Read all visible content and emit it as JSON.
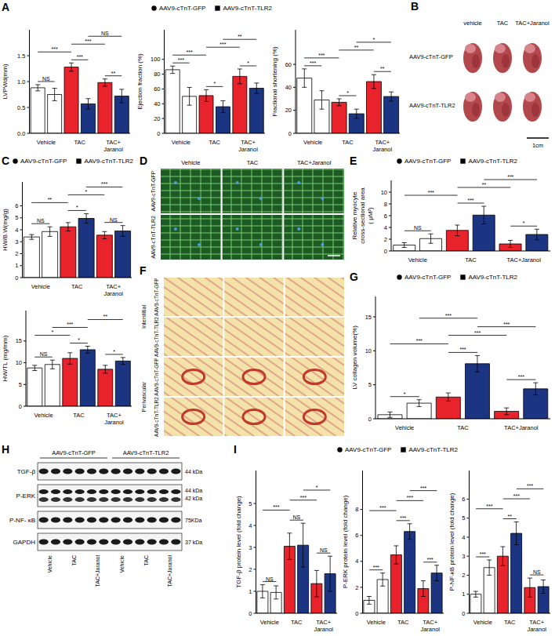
{
  "chart_data": [
    {
      "panel": "A",
      "type": "bar",
      "y_label": "LVPWd(mm)",
      "categories": [
        "Vehicle",
        "TAC",
        "TAC+Jaranol"
      ],
      "legend": "top",
      "series": [
        {
          "name": "AAV9-cTnT-GFP",
          "marker": "circle",
          "colors": [
            "#ffffff",
            "#e8232b",
            "#e8232b"
          ],
          "values": [
            0.88,
            1.28,
            0.98
          ],
          "errors": [
            0.06,
            0.08,
            0.07
          ]
        },
        {
          "name": "AAV9-cTnT-TLR2",
          "marker": "square",
          "colors": [
            "#ffffff",
            "#1c3582",
            "#1c3582"
          ],
          "values": [
            0.75,
            0.57,
            0.72
          ],
          "errors": [
            0.12,
            0.1,
            0.13
          ]
        }
      ],
      "ylim": [
        0,
        2
      ],
      "yticks": [
        {
          "value": 0,
          "label": "0.0"
        },
        0.5,
        {
          "value": 1,
          "label": "1.0"
        },
        1.5
      ],
      "comparisons": [
        {
          "bars": [
            0,
            1
          ],
          "label": "NS"
        },
        {
          "bars": [
            2,
            3
          ],
          "label": "***"
        },
        {
          "bars": [
            4,
            5
          ],
          "label": "**"
        },
        {
          "bars": [
            0,
            2
          ],
          "label": "***"
        },
        {
          "bars": [
            2,
            4
          ],
          "label": "***"
        },
        {
          "bars": [
            3,
            5
          ],
          "label": "NS"
        }
      ]
    },
    {
      "type": "bar",
      "y_label": "Ejection fraction (%)",
      "categories": [
        "Vehicle",
        "TAC",
        "TAC+Jaranol"
      ],
      "series": [
        {
          "name": "AAV9-cTnT-GFP",
          "marker": "circle",
          "colors": [
            "#ffffff",
            "#e8232b",
            "#e8232b"
          ],
          "values": [
            86,
            51,
            77
          ],
          "errors": [
            5,
            8,
            10
          ]
        },
        {
          "name": "AAV9-cTnT-TLR2",
          "marker": "square",
          "colors": [
            "#ffffff",
            "#1c3582",
            "#1c3582"
          ],
          "values": [
            50,
            36,
            61
          ],
          "errors": [
            12,
            8,
            7
          ]
        }
      ],
      "ylim": [
        0,
        140
      ],
      "yticks": [
        0,
        20,
        40,
        60,
        80,
        100
      ],
      "comparisons": [
        {
          "bars": [
            0,
            1
          ],
          "label": "***"
        },
        {
          "bars": [
            2,
            3
          ],
          "label": "*"
        },
        {
          "bars": [
            4,
            5
          ],
          "label": "*"
        },
        {
          "bars": [
            0,
            2
          ],
          "label": "***"
        },
        {
          "bars": [
            2,
            4
          ],
          "label": "***"
        },
        {
          "bars": [
            3,
            5
          ],
          "label": "**"
        }
      ]
    },
    {
      "type": "bar",
      "y_label": "Fractional shortening (%)",
      "categories": [
        "Vehicle",
        "TAC",
        "TAC+Jaranol"
      ],
      "series": [
        {
          "name": "AAV9-cTnT-GFP",
          "marker": "circle",
          "colors": [
            "#ffffff",
            "#e8232b",
            "#e8232b"
          ],
          "values": [
            48,
            27,
            45
          ],
          "errors": [
            8,
            3,
            6
          ]
        },
        {
          "name": "AAV9-cTnT-TLR2",
          "marker": "square",
          "colors": [
            "#ffffff",
            "#1c3582",
            "#1c3582"
          ],
          "values": [
            29,
            17,
            32
          ],
          "errors": [
            8,
            4,
            4
          ]
        }
      ],
      "ylim": [
        0,
        90
      ],
      "yticks": [
        0,
        20,
        40,
        60
      ],
      "comparisons": [
        {
          "bars": [
            0,
            1
          ],
          "label": "***"
        },
        {
          "bars": [
            2,
            3
          ],
          "label": "*"
        },
        {
          "bars": [
            4,
            5
          ],
          "label": "**"
        },
        {
          "bars": [
            0,
            2
          ],
          "label": "***"
        },
        {
          "bars": [
            2,
            4
          ],
          "label": "**"
        },
        {
          "bars": [
            3,
            5
          ],
          "label": "*"
        }
      ]
    },
    {
      "panel": "C",
      "type": "bar",
      "y_label": "HW/B.W(mg/g)",
      "categories": [
        "Vehicle",
        "TAC",
        "TAC+Jaranol"
      ],
      "legend": "top",
      "series": [
        {
          "name": "AAV9-cTnT-GFP",
          "marker": "circle",
          "colors": [
            "#ffffff",
            "#e8232b",
            "#e8232b"
          ],
          "values": [
            3.4,
            4.25,
            3.55
          ],
          "errors": [
            0.2,
            0.35,
            0.3
          ]
        },
        {
          "name": "AAV9-cTnT-TLR2",
          "marker": "square",
          "colors": [
            "#ffffff",
            "#1c3582",
            "#1c3582"
          ],
          "values": [
            3.85,
            4.95,
            3.9
          ],
          "errors": [
            0.4,
            0.4,
            0.45
          ]
        }
      ],
      "ylim": [
        0,
        8
      ],
      "yticks": [
        0,
        1,
        2,
        3,
        4,
        5,
        6
      ],
      "comparisons": [
        {
          "bars": [
            0,
            1
          ],
          "label": "NS"
        },
        {
          "bars": [
            2,
            3
          ],
          "label": "*"
        },
        {
          "bars": [
            4,
            5
          ],
          "label": "NS"
        },
        {
          "bars": [
            0,
            2
          ],
          "label": "**"
        },
        {
          "bars": [
            2,
            4
          ],
          "label": "*"
        },
        {
          "bars": [
            3,
            5
          ],
          "label": "***"
        }
      ]
    },
    {
      "type": "bar",
      "y_label": "HW/TL (mg/mm)",
      "categories": [
        "Vehicle",
        "TAC",
        "TAC+Jaranol"
      ],
      "series": [
        {
          "name": "AAV9-cTnT-GFP",
          "marker": "circle",
          "colors": [
            "#ffffff",
            "#e8232b",
            "#e8232b"
          ],
          "values": [
            8.8,
            11,
            8.5
          ],
          "errors": [
            0.6,
            1.3,
            0.9
          ]
        },
        {
          "name": "AAV9-cTnT-TLR2",
          "marker": "square",
          "colors": [
            "#ffffff",
            "#1c3582",
            "#1c3582"
          ],
          "values": [
            9.6,
            13,
            10.4
          ],
          "errors": [
            1,
            0.8,
            0.8
          ]
        }
      ],
      "ylim": [
        0,
        22
      ],
      "yticks": [
        0,
        5,
        10,
        15
      ],
      "comparisons": [
        {
          "bars": [
            0,
            1
          ],
          "label": "NS"
        },
        {
          "bars": [
            2,
            3
          ],
          "label": "*"
        },
        {
          "bars": [
            4,
            5
          ],
          "label": "*"
        },
        {
          "bars": [
            0,
            2
          ],
          "label": "*"
        },
        {
          "bars": [
            1,
            3
          ],
          "label": "***"
        },
        {
          "bars": [
            3,
            5
          ],
          "label": "**"
        }
      ]
    },
    {
      "panel": "E",
      "type": "bar",
      "y_label": "Relative myocyte cross-sectional area ( μM²)",
      "categories": [
        "Vehicle",
        "TAC",
        "TAC+Jaranol"
      ],
      "legend": "top",
      "series": [
        {
          "name": "AAV9-cTnT-GFP",
          "marker": "circle",
          "colors": [
            "#ffffff",
            "#e8232b",
            "#e8232b"
          ],
          "values": [
            1.0,
            3.5,
            1.2
          ],
          "errors": [
            0.4,
            0.9,
            0.6
          ]
        },
        {
          "name": "AAV9-cTnT-TLR2",
          "marker": "square",
          "colors": [
            "#ffffff",
            "#1c3582",
            "#1c3582"
          ],
          "values": [
            2.1,
            6.1,
            2.8
          ],
          "errors": [
            0.8,
            1.5,
            0.9
          ]
        }
      ],
      "ylim": [
        0,
        12
      ],
      "yticks": [
        0,
        2,
        4,
        6,
        8,
        10
      ],
      "comparisons": [
        {
          "bars": [
            0,
            1
          ],
          "label": "NS"
        },
        {
          "bars": [
            2,
            3
          ],
          "label": "***"
        },
        {
          "bars": [
            4,
            5
          ],
          "label": "*"
        },
        {
          "bars": [
            0,
            2
          ],
          "label": "***"
        },
        {
          "bars": [
            2,
            4
          ],
          "label": "**"
        },
        {
          "bars": [
            3,
            5
          ],
          "label": "***"
        }
      ]
    },
    {
      "panel": "G",
      "type": "bar",
      "y_label": "LV collagen volume(%)",
      "categories": [
        "Vehicle",
        "TAC",
        "TAC+Jaranol"
      ],
      "legend": "top",
      "series": [
        {
          "name": "AAV9-cTnT-GFP",
          "marker": "circle",
          "colors": [
            "#ffffff",
            "#e8232b",
            "#e8232b"
          ],
          "values": [
            0.6,
            3.2,
            1.1
          ],
          "errors": [
            0.4,
            0.6,
            0.5
          ]
        },
        {
          "name": "AAV9-cTnT-TLR2",
          "marker": "square",
          "colors": [
            "#ffffff",
            "#1c3582",
            "#1c3582"
          ],
          "values": [
            2.3,
            8.1,
            4.4
          ],
          "errors": [
            0.5,
            1.2,
            0.9
          ]
        }
      ],
      "ylim": [
        0,
        18
      ],
      "yticks": [
        0,
        5,
        10,
        15
      ],
      "comparisons": [
        {
          "bars": [
            0,
            1
          ],
          "label": "*"
        },
        {
          "bars": [
            2,
            3
          ],
          "label": "***"
        },
        {
          "bars": [
            4,
            5
          ],
          "label": "***"
        },
        {
          "bars": [
            0,
            2
          ],
          "label": "***"
        },
        {
          "bars": [
            2,
            4
          ],
          "label": "***"
        },
        {
          "bars": [
            3,
            5
          ],
          "label": "***"
        },
        {
          "bars": [
            1,
            3
          ],
          "label": "***"
        }
      ]
    },
    {
      "panel": "I",
      "type": "bar",
      "y_label": "TGF-β protein level (fold change)",
      "categories": [
        "Vehicle",
        "TAC",
        "TAC+Jaranol"
      ],
      "legend": "top",
      "series": [
        {
          "name": "AAV9-cTnT-GFP",
          "marker": "circle",
          "colors": [
            "#ffffff",
            "#e8232b",
            "#e8232b"
          ],
          "values": [
            1.0,
            3.05,
            1.35
          ],
          "errors": [
            0.3,
            0.6,
            0.6
          ]
        },
        {
          "name": "AAV9-cTnT-TLR2",
          "marker": "square",
          "colors": [
            "#ffffff",
            "#1c3582",
            "#1c3582"
          ],
          "values": [
            0.95,
            3.1,
            1.8
          ],
          "errors": [
            0.3,
            1.0,
            0.8
          ]
        }
      ],
      "ylim": [
        0,
        6.5
      ],
      "yticks": [
        0,
        1,
        2,
        3,
        4,
        5
      ],
      "comparisons": [
        {
          "bars": [
            0,
            1
          ],
          "label": "NS"
        },
        {
          "bars": [
            2,
            3
          ],
          "label": "NS"
        },
        {
          "bars": [
            4,
            5
          ],
          "label": "NS"
        },
        {
          "bars": [
            0,
            2
          ],
          "label": "***"
        },
        {
          "bars": [
            2,
            4
          ],
          "label": "***"
        },
        {
          "bars": [
            3,
            5
          ],
          "label": "*"
        }
      ]
    },
    {
      "type": "bar",
      "y_label": "P-ERK protein level (fold change)",
      "categories": [
        "Vehicle",
        "TAC",
        "TAC+Jaranol"
      ],
      "series": [
        {
          "name": "AAV9-cTnT-GFP",
          "marker": "circle",
          "colors": [
            "#ffffff",
            "#e8232b",
            "#e8232b"
          ],
          "values": [
            1.0,
            4.5,
            1.9
          ],
          "errors": [
            0.3,
            0.7,
            0.6
          ]
        },
        {
          "name": "AAV9-cTnT-TLR2",
          "marker": "square",
          "colors": [
            "#ffffff",
            "#1c3582",
            "#1c3582"
          ],
          "values": [
            2.6,
            6.3,
            3.1
          ],
          "errors": [
            0.5,
            0.6,
            0.6
          ]
        }
      ],
      "ylim": [
        0,
        11
      ],
      "yticks": [
        0,
        2,
        4,
        6,
        8
      ],
      "comparisons": [
        {
          "bars": [
            0,
            1
          ],
          "label": "***"
        },
        {
          "bars": [
            2,
            3
          ],
          "label": "***"
        },
        {
          "bars": [
            4,
            5
          ],
          "label": "***"
        },
        {
          "bars": [
            0,
            2
          ],
          "label": "***"
        },
        {
          "bars": [
            2,
            4
          ],
          "label": "***"
        },
        {
          "bars": [
            3,
            5
          ],
          "label": "***"
        }
      ]
    },
    {
      "type": "bar",
      "y_label": "P-NF-κB protein level (fold change)",
      "categories": [
        "Vehicle",
        "TAC",
        "TAC+Jaranol"
      ],
      "series": [
        {
          "name": "AAV9-cTnT-GFP",
          "marker": "circle",
          "colors": [
            "#ffffff",
            "#e8232b",
            "#e8232b"
          ],
          "values": [
            1.0,
            3.0,
            1.35
          ],
          "errors": [
            0.15,
            0.5,
            0.5
          ]
        },
        {
          "name": "AAV9-cTnT-TLR2",
          "marker": "square",
          "colors": [
            "#ffffff",
            "#1c3582",
            "#1c3582"
          ],
          "values": [
            2.4,
            4.2,
            1.4
          ],
          "errors": [
            0.4,
            0.6,
            0.35
          ]
        }
      ],
      "ylim": [
        0,
        7.5
      ],
      "yticks": [
        0,
        1,
        2,
        3,
        4,
        5,
        6
      ],
      "comparisons": [
        {
          "bars": [
            0,
            1
          ],
          "label": "***"
        },
        {
          "bars": [
            2,
            3
          ],
          "label": "**"
        },
        {
          "bars": [
            4,
            5
          ],
          "label": "NS"
        },
        {
          "bars": [
            0,
            2
          ],
          "label": "***"
        },
        {
          "bars": [
            2,
            4
          ],
          "label": "***"
        },
        {
          "bars": [
            3,
            5
          ],
          "label": "***"
        }
      ]
    }
  ],
  "panels": {
    "B": {
      "panel": "B",
      "columns": [
        "vehicle",
        "TAC",
        "TAC+Jaranol"
      ],
      "rows": [
        "AAV9-cTnT-GFP",
        "AAV9-cTnT-TLR2"
      ],
      "scale_bar": "1cm"
    },
    "D": {
      "panel": "D",
      "columns": [
        "Vehicle",
        "TAC",
        "TAC+Jaranol"
      ],
      "rows": [
        "AAV9-cTnT-GFP",
        "AAV9-cTnT-TLR2"
      ]
    },
    "F": {
      "panel": "F",
      "sections": [
        "Interstitial",
        "Perivascular"
      ],
      "rows": [
        "AAV9-cTnT-GFP",
        "AAV9-cTnT-TLR2"
      ]
    },
    "H": {
      "panel": "H",
      "groups": [
        "AAV9-cTnT-GFP",
        "AAV9-cTnT-TLR2"
      ],
      "lanes": [
        "Vehicle",
        "TAC",
        "TAC+Jaranol"
      ],
      "blots": [
        {
          "name": "TGF-β",
          "size": [
            "44 kDa"
          ]
        },
        {
          "name": "P-ERK",
          "size": [
            "44 kDa",
            "42 kDa"
          ]
        },
        {
          "name": "P-NF- κB",
          "size": [
            "75KDa"
          ]
        },
        {
          "name": "GAPDH",
          "size": [
            "37 kDa"
          ]
        }
      ]
    }
  }
}
